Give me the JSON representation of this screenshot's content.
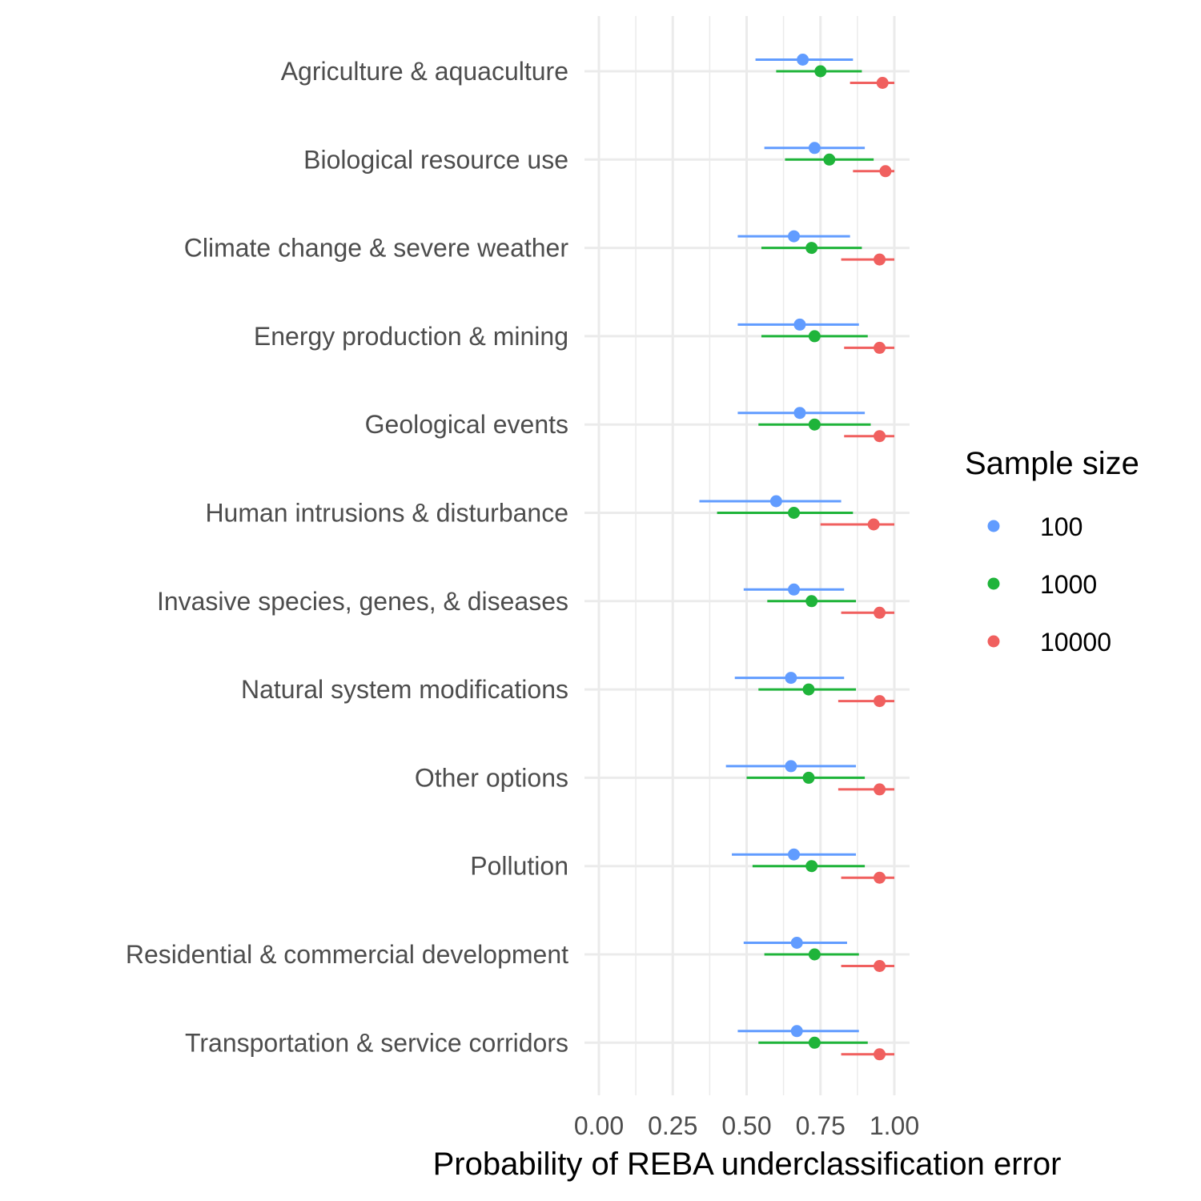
{
  "chart_data": {
    "type": "scatter",
    "xlabel": "Probability of REBA underclassification error",
    "ylabel": "",
    "xlim": [
      -0.01,
      1.05
    ],
    "x_ticks": [
      "0.00",
      "0.25",
      "0.50",
      "0.75",
      "1.00"
    ],
    "x_tick_values": [
      0,
      0.25,
      0.5,
      0.75,
      1.0
    ],
    "grid": true,
    "legend": {
      "title": "Sample size",
      "position": "right"
    },
    "categories": [
      "Agriculture & aquaculture",
      "Biological resource use",
      "Climate change & severe weather",
      "Energy production & mining",
      "Geological events",
      "Human intrusions & disturbance",
      "Invasive species, genes, & diseases",
      "Natural system modifications",
      "Other options",
      "Pollution",
      "Residential & commercial development",
      "Transportation & service corridors"
    ],
    "series": [
      {
        "name": "100",
        "color": "#619CFF",
        "estimate": [
          0.69,
          0.73,
          0.66,
          0.68,
          0.68,
          0.6,
          0.66,
          0.65,
          0.65,
          0.66,
          0.67,
          0.67
        ],
        "lower": [
          0.53,
          0.56,
          0.47,
          0.47,
          0.47,
          0.34,
          0.49,
          0.46,
          0.43,
          0.45,
          0.49,
          0.47
        ],
        "upper": [
          0.86,
          0.9,
          0.85,
          0.88,
          0.9,
          0.82,
          0.83,
          0.83,
          0.87,
          0.87,
          0.84,
          0.88
        ]
      },
      {
        "name": "1000",
        "color": "#1FB43A",
        "estimate": [
          0.75,
          0.78,
          0.72,
          0.73,
          0.73,
          0.66,
          0.72,
          0.71,
          0.71,
          0.72,
          0.73,
          0.73
        ],
        "lower": [
          0.6,
          0.63,
          0.55,
          0.55,
          0.54,
          0.4,
          0.57,
          0.54,
          0.5,
          0.52,
          0.56,
          0.54
        ],
        "upper": [
          0.89,
          0.93,
          0.89,
          0.91,
          0.92,
          0.86,
          0.87,
          0.87,
          0.9,
          0.9,
          0.88,
          0.91
        ]
      },
      {
        "name": "10000",
        "color": "#F0605F",
        "estimate": [
          0.96,
          0.97,
          0.95,
          0.95,
          0.95,
          0.93,
          0.95,
          0.95,
          0.95,
          0.95,
          0.95,
          0.95
        ],
        "lower": [
          0.85,
          0.86,
          0.82,
          0.83,
          0.83,
          0.75,
          0.82,
          0.81,
          0.81,
          0.82,
          0.82,
          0.82
        ],
        "upper": [
          1.0,
          1.0,
          1.0,
          1.0,
          1.0,
          1.0,
          1.0,
          1.0,
          1.0,
          1.0,
          1.0,
          1.0
        ]
      }
    ]
  }
}
